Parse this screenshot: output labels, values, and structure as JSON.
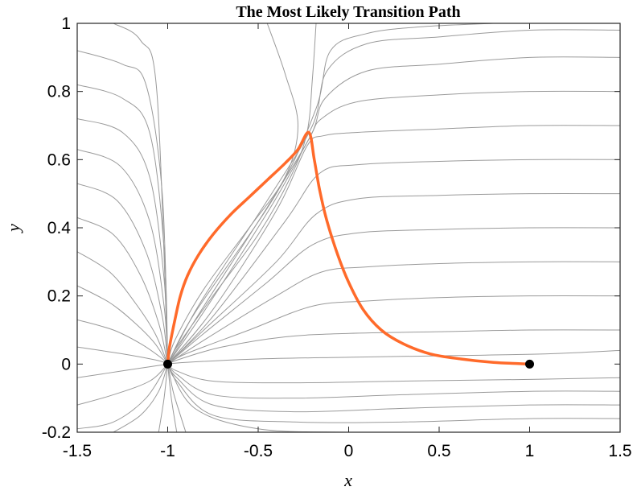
{
  "chart_data": {
    "type": "line",
    "title": "The Most Likely Transition Path",
    "xlabel": "x",
    "ylabel": "y",
    "xlim": [
      -1.5,
      1.5
    ],
    "ylim": [
      -0.2,
      1.0
    ],
    "xticks": [
      -1.5,
      -1,
      -0.5,
      0,
      0.5,
      1,
      1.5
    ],
    "yticks": [
      -0.2,
      0,
      0.2,
      0.4,
      0.6,
      0.8,
      1
    ],
    "xtick_labels": [
      "-1.5",
      "-1",
      "-0.5",
      "0",
      "0.5",
      "1",
      "1.5"
    ],
    "ytick_labels": [
      "-0.2",
      "0",
      "0.2",
      "0.4",
      "0.6",
      "0.8",
      "1"
    ],
    "grid": false,
    "colors": {
      "path": "#ff6a2a",
      "flow": "#9a9a9a",
      "points": "#000000"
    },
    "points": [
      {
        "x": -1,
        "y": 0
      },
      {
        "x": 1,
        "y": 0
      }
    ],
    "transition_path": [
      [
        -1.0,
        0.0
      ],
      [
        -0.99,
        0.05
      ],
      [
        -0.96,
        0.13
      ],
      [
        -0.93,
        0.2
      ],
      [
        -0.89,
        0.26
      ],
      [
        -0.83,
        0.32
      ],
      [
        -0.75,
        0.38
      ],
      [
        -0.65,
        0.44
      ],
      [
        -0.55,
        0.49
      ],
      [
        -0.45,
        0.54
      ],
      [
        -0.35,
        0.59
      ],
      [
        -0.28,
        0.63
      ],
      [
        -0.22,
        0.68
      ],
      [
        -0.19,
        0.6
      ],
      [
        -0.16,
        0.51
      ],
      [
        -0.12,
        0.42
      ],
      [
        -0.06,
        0.32
      ],
      [
        0.0,
        0.24
      ],
      [
        0.08,
        0.16
      ],
      [
        0.18,
        0.1
      ],
      [
        0.3,
        0.06
      ],
      [
        0.45,
        0.03
      ],
      [
        0.62,
        0.015
      ],
      [
        0.8,
        0.005
      ],
      [
        1.0,
        0.0
      ]
    ],
    "flow_lines": [
      [
        [
          -1.5,
          0.05
        ],
        [
          -1.25,
          0.03
        ],
        [
          -1.05,
          0.01
        ],
        [
          -1.0,
          0.0
        ]
      ],
      [
        [
          -1.5,
          0.13
        ],
        [
          -1.3,
          0.1
        ],
        [
          -1.15,
          0.06
        ],
        [
          -1.04,
          0.02
        ],
        [
          -1.0,
          0.0
        ]
      ],
      [
        [
          -1.5,
          0.23
        ],
        [
          -1.32,
          0.18
        ],
        [
          -1.18,
          0.12
        ],
        [
          -1.07,
          0.06
        ],
        [
          -1.0,
          0.0
        ]
      ],
      [
        [
          -1.5,
          0.33
        ],
        [
          -1.32,
          0.27
        ],
        [
          -1.18,
          0.18
        ],
        [
          -1.07,
          0.09
        ],
        [
          -1.0,
          0.0
        ]
      ],
      [
        [
          -1.5,
          0.43
        ],
        [
          -1.3,
          0.38
        ],
        [
          -1.15,
          0.26
        ],
        [
          -1.05,
          0.12
        ],
        [
          -1.0,
          0.0
        ]
      ],
      [
        [
          -1.5,
          0.53
        ],
        [
          -1.28,
          0.48
        ],
        [
          -1.12,
          0.33
        ],
        [
          -1.03,
          0.14
        ],
        [
          -1.0,
          0.0
        ]
      ],
      [
        [
          -1.5,
          0.63
        ],
        [
          -1.26,
          0.58
        ],
        [
          -1.1,
          0.42
        ],
        [
          -1.02,
          0.17
        ],
        [
          -1.0,
          0.0
        ]
      ],
      [
        [
          -1.5,
          0.72
        ],
        [
          -1.25,
          0.68
        ],
        [
          -1.1,
          0.55
        ],
        [
          -1.02,
          0.25
        ],
        [
          -1.0,
          0.0
        ]
      ],
      [
        [
          -1.5,
          0.82
        ],
        [
          -1.25,
          0.78
        ],
        [
          -1.1,
          0.68
        ],
        [
          -1.02,
          0.34
        ],
        [
          -1.0,
          0.0
        ]
      ],
      [
        [
          -1.5,
          0.92
        ],
        [
          -1.25,
          0.88
        ],
        [
          -1.12,
          0.82
        ],
        [
          -1.03,
          0.5
        ],
        [
          -1.0,
          0.0
        ]
      ],
      [
        [
          -1.3,
          1.0
        ],
        [
          -1.15,
          0.95
        ],
        [
          -1.06,
          0.8
        ],
        [
          -1.0,
          0.0
        ]
      ],
      [
        [
          -1.5,
          -0.04
        ],
        [
          -1.25,
          -0.02
        ],
        [
          -1.0,
          0.0
        ]
      ],
      [
        [
          -1.5,
          -0.12
        ],
        [
          -1.3,
          -0.09
        ],
        [
          -1.1,
          -0.05
        ],
        [
          -1.0,
          0.0
        ]
      ],
      [
        [
          -1.5,
          -0.19
        ],
        [
          -1.3,
          -0.17
        ],
        [
          -1.12,
          -0.1
        ],
        [
          -1.0,
          0.0
        ]
      ],
      [
        [
          -1.3,
          -0.2
        ],
        [
          -1.15,
          -0.15
        ],
        [
          -1.05,
          -0.08
        ],
        [
          -1.0,
          0.0
        ]
      ],
      [
        [
          -1.05,
          -0.2
        ],
        [
          -1.02,
          -0.1
        ],
        [
          -1.0,
          0.0
        ]
      ],
      [
        [
          -0.95,
          -0.2
        ],
        [
          -0.98,
          -0.1
        ],
        [
          -1.0,
          0.0
        ]
      ],
      [
        [
          -0.9,
          -0.2
        ],
        [
          -0.93,
          -0.15
        ],
        [
          -0.97,
          -0.08
        ],
        [
          -1.0,
          0.0
        ]
      ],
      [
        [
          -0.45,
          1.0
        ],
        [
          -0.35,
          0.85
        ],
        [
          -0.28,
          0.7
        ],
        [
          -0.35,
          0.55
        ],
        [
          -0.55,
          0.4
        ],
        [
          -0.8,
          0.22
        ],
        [
          -0.96,
          0.07
        ],
        [
          -1.0,
          0.0
        ]
      ],
      [
        [
          -0.18,
          1.0
        ],
        [
          -0.2,
          0.84
        ],
        [
          -0.23,
          0.68
        ],
        [
          -0.32,
          0.55
        ],
        [
          -0.5,
          0.38
        ],
        [
          -0.75,
          0.2
        ],
        [
          -0.95,
          0.05
        ],
        [
          -1.0,
          0.0
        ]
      ],
      [
        [
          1.5,
          0.04
        ],
        [
          1.1,
          0.03
        ],
        [
          0.6,
          0.025
        ],
        [
          0.0,
          0.02
        ],
        [
          -0.5,
          0.015
        ],
        [
          -0.9,
          0.005
        ],
        [
          -1.0,
          0.0
        ]
      ],
      [
        [
          1.5,
          0.1
        ],
        [
          1.0,
          0.1
        ],
        [
          0.5,
          0.095
        ],
        [
          0.0,
          0.09
        ],
        [
          -0.35,
          0.08
        ],
        [
          -0.7,
          0.05
        ],
        [
          -0.93,
          0.015
        ],
        [
          -1.0,
          0.0
        ]
      ],
      [
        [
          1.5,
          0.2
        ],
        [
          1.0,
          0.2
        ],
        [
          0.5,
          0.195
        ],
        [
          0.1,
          0.185
        ],
        [
          -0.2,
          0.17
        ],
        [
          -0.55,
          0.1
        ],
        [
          -0.9,
          0.03
        ],
        [
          -1.0,
          0.0
        ]
      ],
      [
        [
          1.5,
          0.3
        ],
        [
          1.0,
          0.3
        ],
        [
          0.5,
          0.295
        ],
        [
          0.1,
          0.285
        ],
        [
          -0.15,
          0.27
        ],
        [
          -0.4,
          0.2
        ],
        [
          -0.8,
          0.07
        ],
        [
          -1.0,
          0.0
        ]
      ],
      [
        [
          1.5,
          0.4
        ],
        [
          1.0,
          0.4
        ],
        [
          0.5,
          0.395
        ],
        [
          0.05,
          0.385
        ],
        [
          -0.2,
          0.35
        ],
        [
          -0.45,
          0.24
        ],
        [
          -0.8,
          0.09
        ],
        [
          -1.0,
          0.0
        ]
      ],
      [
        [
          1.5,
          0.5
        ],
        [
          1.0,
          0.5
        ],
        [
          0.5,
          0.495
        ],
        [
          0.05,
          0.485
        ],
        [
          -0.18,
          0.44
        ],
        [
          -0.4,
          0.3
        ],
        [
          -0.78,
          0.11
        ],
        [
          -1.0,
          0.0
        ]
      ],
      [
        [
          1.5,
          0.6
        ],
        [
          1.0,
          0.6
        ],
        [
          0.5,
          0.595
        ],
        [
          0.05,
          0.585
        ],
        [
          -0.16,
          0.56
        ],
        [
          -0.35,
          0.42
        ],
        [
          -0.75,
          0.14
        ],
        [
          -1.0,
          0.0
        ]
      ],
      [
        [
          1.5,
          0.7
        ],
        [
          1.0,
          0.7
        ],
        [
          0.5,
          0.69
        ],
        [
          0.05,
          0.68
        ],
        [
          -0.14,
          0.67
        ],
        [
          -0.23,
          0.64
        ],
        [
          -0.4,
          0.45
        ],
        [
          -0.75,
          0.16
        ],
        [
          -1.0,
          0.0
        ]
      ],
      [
        [
          1.5,
          0.8
        ],
        [
          1.0,
          0.8
        ],
        [
          0.5,
          0.79
        ],
        [
          0.05,
          0.77
        ],
        [
          -0.15,
          0.72
        ],
        [
          -0.22,
          0.66
        ],
        [
          -0.42,
          0.47
        ],
        [
          -0.78,
          0.17
        ],
        [
          -1.0,
          0.0
        ]
      ],
      [
        [
          1.5,
          0.9
        ],
        [
          1.0,
          0.9
        ],
        [
          0.5,
          0.88
        ],
        [
          0.1,
          0.86
        ],
        [
          -0.13,
          0.78
        ],
        [
          -0.21,
          0.67
        ],
        [
          -0.45,
          0.46
        ],
        [
          -0.8,
          0.17
        ],
        [
          -1.0,
          0.0
        ]
      ],
      [
        [
          1.5,
          0.98
        ],
        [
          1.0,
          0.98
        ],
        [
          0.5,
          0.96
        ],
        [
          0.1,
          0.94
        ],
        [
          -0.12,
          0.86
        ],
        [
          -0.2,
          0.7
        ],
        [
          -0.45,
          0.48
        ],
        [
          -0.82,
          0.18
        ],
        [
          -1.0,
          0.0
        ]
      ],
      [
        [
          0.8,
          1.0
        ],
        [
          0.4,
          0.99
        ],
        [
          0.1,
          0.97
        ],
        [
          -0.1,
          0.92
        ],
        [
          -0.18,
          0.75
        ],
        [
          -0.4,
          0.5
        ],
        [
          -0.85,
          0.15
        ],
        [
          -1.0,
          0.0
        ]
      ],
      [
        [
          1.5,
          -0.04
        ],
        [
          1.0,
          -0.045
        ],
        [
          0.3,
          -0.05
        ],
        [
          -0.3,
          -0.055
        ],
        [
          -0.75,
          -0.05
        ],
        [
          -0.95,
          -0.02
        ],
        [
          -1.0,
          0.0
        ]
      ],
      [
        [
          1.5,
          -0.08
        ],
        [
          1.0,
          -0.08
        ],
        [
          0.3,
          -0.09
        ],
        [
          -0.3,
          -0.1
        ],
        [
          -0.75,
          -0.09
        ],
        [
          -0.95,
          -0.03
        ],
        [
          -1.0,
          0.0
        ]
      ],
      [
        [
          1.5,
          -0.12
        ],
        [
          1.0,
          -0.12
        ],
        [
          0.3,
          -0.13
        ],
        [
          -0.3,
          -0.14
        ],
        [
          -0.75,
          -0.12
        ],
        [
          -0.95,
          -0.04
        ],
        [
          -1.0,
          0.0
        ]
      ],
      [
        [
          1.5,
          -0.16
        ],
        [
          1.0,
          -0.16
        ],
        [
          0.3,
          -0.17
        ],
        [
          -0.3,
          -0.17
        ],
        [
          -0.75,
          -0.15
        ],
        [
          -0.95,
          -0.05
        ],
        [
          -1.0,
          0.0
        ]
      ],
      [
        [
          1.2,
          -0.2
        ],
        [
          0.5,
          -0.2
        ],
        [
          0.0,
          -0.2
        ],
        [
          -0.5,
          -0.19
        ],
        [
          -0.85,
          -0.13
        ],
        [
          -1.0,
          0.0
        ]
      ]
    ]
  }
}
